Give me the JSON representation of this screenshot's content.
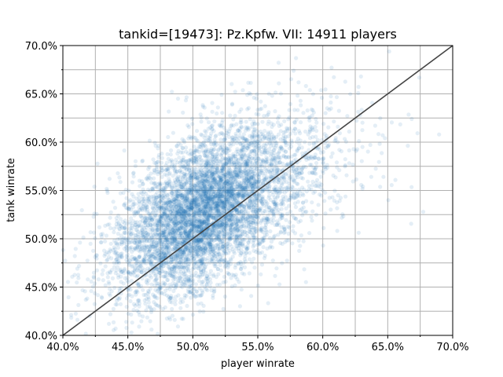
{
  "chart_data": {
    "type": "scatter",
    "title": "tankid=[19473]: Pz.Kpfw. VII: 14911 players",
    "xlabel": "player winrate",
    "ylabel": "tank winrate",
    "xlim": [
      0.4,
      0.7
    ],
    "ylim": [
      0.4,
      0.7
    ],
    "major_ticks": [
      0.4,
      0.45,
      0.5,
      0.55,
      0.6,
      0.65,
      0.7
    ],
    "minor_ticks": [
      0.425,
      0.475,
      0.525,
      0.575,
      0.625,
      0.675
    ],
    "x_tick_labels": [
      "40.0%",
      "45.0%",
      "50.0%",
      "55.0%",
      "60.0%",
      "65.0%",
      "70.0%"
    ],
    "y_tick_labels": [
      "40.0%",
      "45.0%",
      "50.0%",
      "55.0%",
      "60.0%",
      "65.0%",
      "70.0%"
    ],
    "grid": true,
    "reference_line": {
      "x": [
        0.4,
        0.7
      ],
      "y": [
        0.4,
        0.7
      ],
      "color": "#444444"
    },
    "point_count": 14911,
    "distribution": {
      "x_mean": 0.51,
      "x_std": 0.035,
      "y_mean": 0.53,
      "y_std": 0.045,
      "correlation": 0.55
    },
    "colors": {
      "points": "#1f77b4",
      "grid": "#b0b0b0",
      "line": "#444444"
    }
  }
}
